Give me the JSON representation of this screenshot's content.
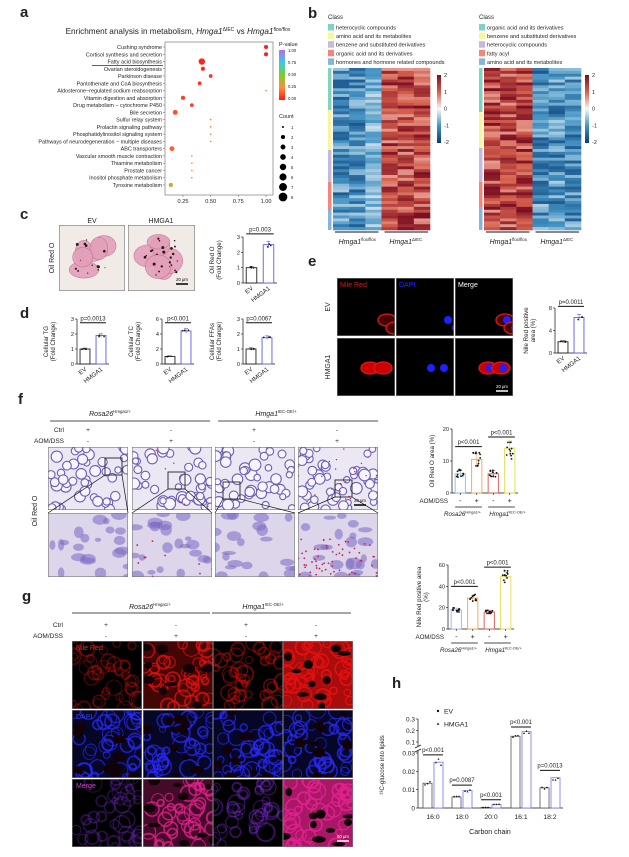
{
  "panel_labels": [
    "a",
    "b",
    "c",
    "d",
    "e",
    "f",
    "g",
    "h"
  ],
  "c": {
    "headers": [
      "EV",
      "HMGA1"
    ],
    "row_label": "Oil Red O",
    "scale_bar": "20 μm"
  },
  "e": {
    "channels": [
      "Nile Red",
      "DAPI",
      "Merge"
    ],
    "rows": [
      "EV",
      "HMGA1"
    ],
    "scale_bar": "20 μm"
  },
  "f": {
    "groups": [
      {
        "name": "Rosa26",
        "sup": "Hmga1/+"
      },
      {
        "name": "Hmga1",
        "sup": "IEC-OE/+"
      }
    ],
    "rows": [
      {
        "label": "Ctrl",
        "values": [
          "+",
          "-",
          "+",
          "-"
        ]
      },
      {
        "label": "AOM/DSS",
        "values": [
          "-",
          "+",
          "-",
          "+"
        ]
      }
    ],
    "row_label": "Oil Red O",
    "scale_bar": "20 μm"
  },
  "g": {
    "groups": [
      {
        "name": "Rosa26",
        "sup": "Hmga1/+"
      },
      {
        "name": "Hmga1",
        "sup": "IEC-OE/+"
      }
    ],
    "rows": [
      {
        "label": "Ctrl",
        "values": [
          "+",
          "-",
          "+",
          "-"
        ]
      },
      {
        "label": "AOM/DSS",
        "values": [
          "-",
          "+",
          "-",
          "+"
        ]
      }
    ],
    "channels": [
      "Nile Red",
      "DAPI",
      "Merge"
    ],
    "scale_bar": "50 μm"
  },
  "colors": {
    "ev": "#222222",
    "hmga1": "#5b5be6",
    "red_underline": "#c0392b"
  },
  "chart_data": [
    {
      "id": "a",
      "type": "scatter",
      "title": {
        "prefix": "Enrichment analysis in metabolism, ",
        "gene": "Hmga1",
        "sup1": "ΔIEC",
        "vs": " vs ",
        "gene2": "Hmga1",
        "sup2": "flox/flox"
      },
      "xticks": [
        "0.25",
        "0.50",
        "0.75",
        "1.00"
      ],
      "highlighted": 2,
      "terms": [
        {
          "name": "Cushing syndrome",
          "gene_ratio": 1.0,
          "count": 2,
          "p_value": 0.01
        },
        {
          "name": "Cortisol synthesis and secretion",
          "gene_ratio": 1.0,
          "count": 2,
          "p_value": 0.01
        },
        {
          "name": "Fatty acid biosynthesis",
          "gene_ratio": 0.42,
          "count": 5,
          "p_value": 0.02
        },
        {
          "name": "Ovarian steroidogenesis",
          "gene_ratio": 0.43,
          "count": 2,
          "p_value": 0.03
        },
        {
          "name": "Parkinson disease",
          "gene_ratio": 0.5,
          "count": 1.5,
          "p_value": 0.05
        },
        {
          "name": "Pantothenate and CoA biosynthesis",
          "gene_ratio": 0.4,
          "count": 1.5,
          "p_value": 0.05
        },
        {
          "name": "Aldosterone−regulated sodium reabsorption",
          "gene_ratio": 1.0,
          "count": 1,
          "p_value": 0.2
        },
        {
          "name": "Vitamin digestion and absorption",
          "gene_ratio": 0.25,
          "count": 2,
          "p_value": 0.08
        },
        {
          "name": "Drug metabolism − cytochrome P450",
          "gene_ratio": 0.33,
          "count": 1.5,
          "p_value": 0.08
        },
        {
          "name": "Bile secretion",
          "gene_ratio": 0.18,
          "count": 3,
          "p_value": 0.12
        },
        {
          "name": "Sulfur relay system",
          "gene_ratio": 0.5,
          "count": 1,
          "p_value": 0.2
        },
        {
          "name": "Prolactin signaling pathway",
          "gene_ratio": 0.5,
          "count": 1,
          "p_value": 0.2
        },
        {
          "name": "Phosphatidylinositol signaling system",
          "gene_ratio": 0.5,
          "count": 1,
          "p_value": 0.2
        },
        {
          "name": "Pathways of neurodegeneration − multiple diseases",
          "gene_ratio": 0.5,
          "count": 1,
          "p_value": 0.2
        },
        {
          "name": "ABC transporters",
          "gene_ratio": 0.15,
          "count": 3,
          "p_value": 0.15
        },
        {
          "name": "Vascular smooth muscle contraction",
          "gene_ratio": 0.33,
          "count": 1,
          "p_value": 0.22
        },
        {
          "name": "Thiamine metabolism",
          "gene_ratio": 0.33,
          "count": 1,
          "p_value": 0.22
        },
        {
          "name": "Prostate cancer",
          "gene_ratio": 0.33,
          "count": 1,
          "p_value": 0.22
        },
        {
          "name": "Inositol phosphate metabolism",
          "gene_ratio": 0.33,
          "count": 1,
          "p_value": 0.22
        },
        {
          "name": "Tyrosine metabolism",
          "gene_ratio": 0.14,
          "count": 2,
          "p_value": 0.35
        }
      ],
      "legend": {
        "pvalue_title": "P-value",
        "pvalue_ticks": [
          "1.00",
          "0.75",
          "0.50",
          "0.25",
          "0.00"
        ],
        "count_title": "Count",
        "count_ticks": [
          1,
          2,
          3,
          4,
          5,
          6,
          7,
          8
        ]
      }
    },
    {
      "id": "b",
      "type": "heatmap",
      "legend_title": "Class",
      "colorbar_ticks": [
        "2",
        "1",
        "0",
        "-1",
        "-2"
      ],
      "scale": [
        -2,
        2
      ],
      "panels": [
        {
          "classes": [
            {
              "name": "heterocyclic compounds",
              "color": "#7fd3c1",
              "weight": 42
            },
            {
              "name": "amino acid and its metabolites",
              "color": "#faf59c",
              "weight": 40
            },
            {
              "name": "benzene and substituted derivatives",
              "color": "#c3badd",
              "weight": 32
            },
            {
              "name": "organic acid and its derivatives",
              "color": "#f4857b",
              "weight": 28
            },
            {
              "name": "hormones and hormone related compounds",
              "color": "#85b5d9",
              "weight": 20
            }
          ],
          "groups": [
            {
              "name": "Hmga1",
              "sup": "flox/flox"
            },
            {
              "name": "Hmga1",
              "sup": "ΔIEC"
            }
          ],
          "up_group": 1
        },
        {
          "classes": [
            {
              "name": "organic acid and its derivatives",
              "color": "#7fd3c1",
              "weight": 44
            },
            {
              "name": "benzene and substituted derivatives",
              "color": "#faf59c",
              "weight": 36
            },
            {
              "name": "heterocyclic compounds",
              "color": "#c3badd",
              "weight": 34
            },
            {
              "name": "fatty acyl",
              "color": "#f4857b",
              "weight": 25
            },
            {
              "name": "amino acid and its metabolites",
              "color": "#85b5d9",
              "weight": 23
            }
          ],
          "groups": [
            {
              "name": "Hmga1",
              "sup": "flox/flox"
            },
            {
              "name": "Hmga1",
              "sup": "ΔIEC"
            }
          ],
          "up_group": 0
        }
      ]
    },
    {
      "id": "c",
      "type": "bar",
      "ylabel_lines": [
        "Oil Red O",
        "(Fold Change)"
      ],
      "categories": [
        "EV",
        "HMGA1"
      ],
      "values": [
        1,
        2.5
      ],
      "spread": 0.15,
      "n": 3,
      "ylim": [
        0,
        3
      ],
      "yticks": [
        0,
        1,
        2,
        3
      ],
      "comparisons": [
        {
          "pair": [
            0,
            1
          ],
          "label": "p=0.003",
          "level": 3.2
        }
      ]
    },
    {
      "id": "d-tg",
      "type": "bar",
      "ylabel_lines": [
        "Cellular TG",
        "(Fold Change)"
      ],
      "categories": [
        "EV",
        "HMGA1"
      ],
      "values": [
        1,
        1.9
      ],
      "spread": 0.1,
      "n": 3,
      "ylim": [
        0,
        3
      ],
      "yticks": [
        0,
        1,
        2,
        3
      ],
      "comparisons": [
        {
          "pair": [
            0,
            1
          ],
          "label": "p=0.0013",
          "level": 2.75
        }
      ]
    },
    {
      "id": "d-tc",
      "type": "bar",
      "ylabel_lines": [
        "Cellular TC",
        "(Fold Change)"
      ],
      "categories": [
        "EV",
        "HMGA1"
      ],
      "values": [
        1,
        4.4
      ],
      "spread": 0.12,
      "n": 3,
      "ylim": [
        0,
        6
      ],
      "yticks": [
        0,
        2,
        4,
        6
      ],
      "comparisons": [
        {
          "pair": [
            0,
            1
          ],
          "label": "p<0.001",
          "level": 5.5
        }
      ]
    },
    {
      "id": "d-ffa",
      "type": "bar",
      "ylabel_lines": [
        "Cellular FFAs",
        "(Fold Change)"
      ],
      "categories": [
        "EV",
        "HMGA1"
      ],
      "values": [
        1,
        1.75
      ],
      "spread": 0.12,
      "n": 3,
      "ylim": [
        0,
        3
      ],
      "yticks": [
        0,
        1,
        2,
        3
      ],
      "comparisons": [
        {
          "pair": [
            0,
            1
          ],
          "label": "p=0.0067",
          "level": 2.75
        }
      ]
    },
    {
      "id": "e",
      "type": "bar",
      "ylabel_lines": [
        "Nile Red positive",
        "area (%)"
      ],
      "categories": [
        "EV",
        "HMGA1"
      ],
      "values": [
        2,
        6.3
      ],
      "spread": 0.15,
      "n": 3,
      "ylim": [
        0,
        8
      ],
      "yticks": [
        0,
        4,
        8
      ],
      "comparisons": [
        {
          "pair": [
            0,
            1
          ],
          "label": "p=0.0011",
          "level": 8.3
        }
      ]
    },
    {
      "id": "f-oil",
      "type": "bar",
      "ylabel_lines": [
        "Oil Red O area (%)"
      ],
      "categories": [
        "-",
        "+",
        "-",
        "+"
      ],
      "row_label": "AOM/DSS",
      "values": [
        6,
        10.5,
        6,
        14
      ],
      "spread": 0.3,
      "n": 12,
      "ylim": [
        0,
        20
      ],
      "yticks": [
        0,
        10,
        20
      ],
      "bar_colors": [
        "#8ab8ea",
        "#f3a14b",
        "#d9534f",
        "#e6d94c"
      ],
      "groups": [
        {
          "name": "Rosa26",
          "sup": "Hmga1/+"
        },
        {
          "name": "Hmga1",
          "sup": "IEC-OE/+"
        }
      ],
      "comparisons": [
        {
          "pair": [
            0,
            1
          ],
          "label": "p<0.001",
          "level": 14.5
        },
        {
          "pair": [
            2,
            3
          ],
          "label": "p<0.001",
          "level": 17.5
        }
      ]
    },
    {
      "id": "f-nile",
      "type": "bar",
      "ylabel_lines": [
        "Nile Red positive area",
        "(%)"
      ],
      "categories": [
        "-",
        "+",
        "-",
        "+"
      ],
      "row_label": "AOM/DSS",
      "values": [
        18,
        29,
        16,
        49
      ],
      "spread": 0.15,
      "n": 12,
      "ylim": [
        0,
        60
      ],
      "yticks": [
        0,
        20,
        40,
        60
      ],
      "bar_colors": [
        "#8ab8ea",
        "#f3a14b",
        "#d9534f",
        "#e6d94c"
      ],
      "groups": [
        {
          "name": "Rosa26",
          "sup": "Hmga1/+"
        },
        {
          "name": "Hmga1",
          "sup": "IEC-OE/+"
        }
      ],
      "comparisons": [
        {
          "pair": [
            0,
            1
          ],
          "label": "p<0.001",
          "level": 40
        },
        {
          "pair": [
            2,
            3
          ],
          "label": "p<0.001",
          "level": 58
        }
      ]
    },
    {
      "id": "h",
      "type": "bar",
      "ylabel": "¹³C-glucose into lipids",
      "xlabel": "Carbon chain",
      "categories": [
        "16:0",
        "18:0",
        "20:0",
        "16:1",
        "18:2"
      ],
      "series": [
        {
          "name": "EV",
          "values": [
            0.0135,
            0.006,
            0.0003,
            0.15,
            0.011
          ]
        },
        {
          "name": "HMGA1",
          "values": [
            0.025,
            0.0095,
            0.002,
            0.19,
            0.0165
          ]
        }
      ],
      "yticks_lower": [
        0,
        0.01,
        0.02,
        0.03
      ],
      "yticks_upper": [
        0.1,
        0.2,
        0.3
      ],
      "axis_break": [
        0.03,
        0.1
      ],
      "comparisons": [
        {
          "category": 0,
          "label": "p<0.001",
          "level": 0.029
        },
        {
          "category": 1,
          "label": "p=0.0087",
          "level": 0.0125
        },
        {
          "category": 2,
          "label": "p<0.001",
          "level": 0.0045
        },
        {
          "category": 3,
          "label": "p<0.001",
          "level": 0.23
        },
        {
          "category": 4,
          "label": "p=0.0013",
          "level": 0.0205
        }
      ]
    }
  ]
}
